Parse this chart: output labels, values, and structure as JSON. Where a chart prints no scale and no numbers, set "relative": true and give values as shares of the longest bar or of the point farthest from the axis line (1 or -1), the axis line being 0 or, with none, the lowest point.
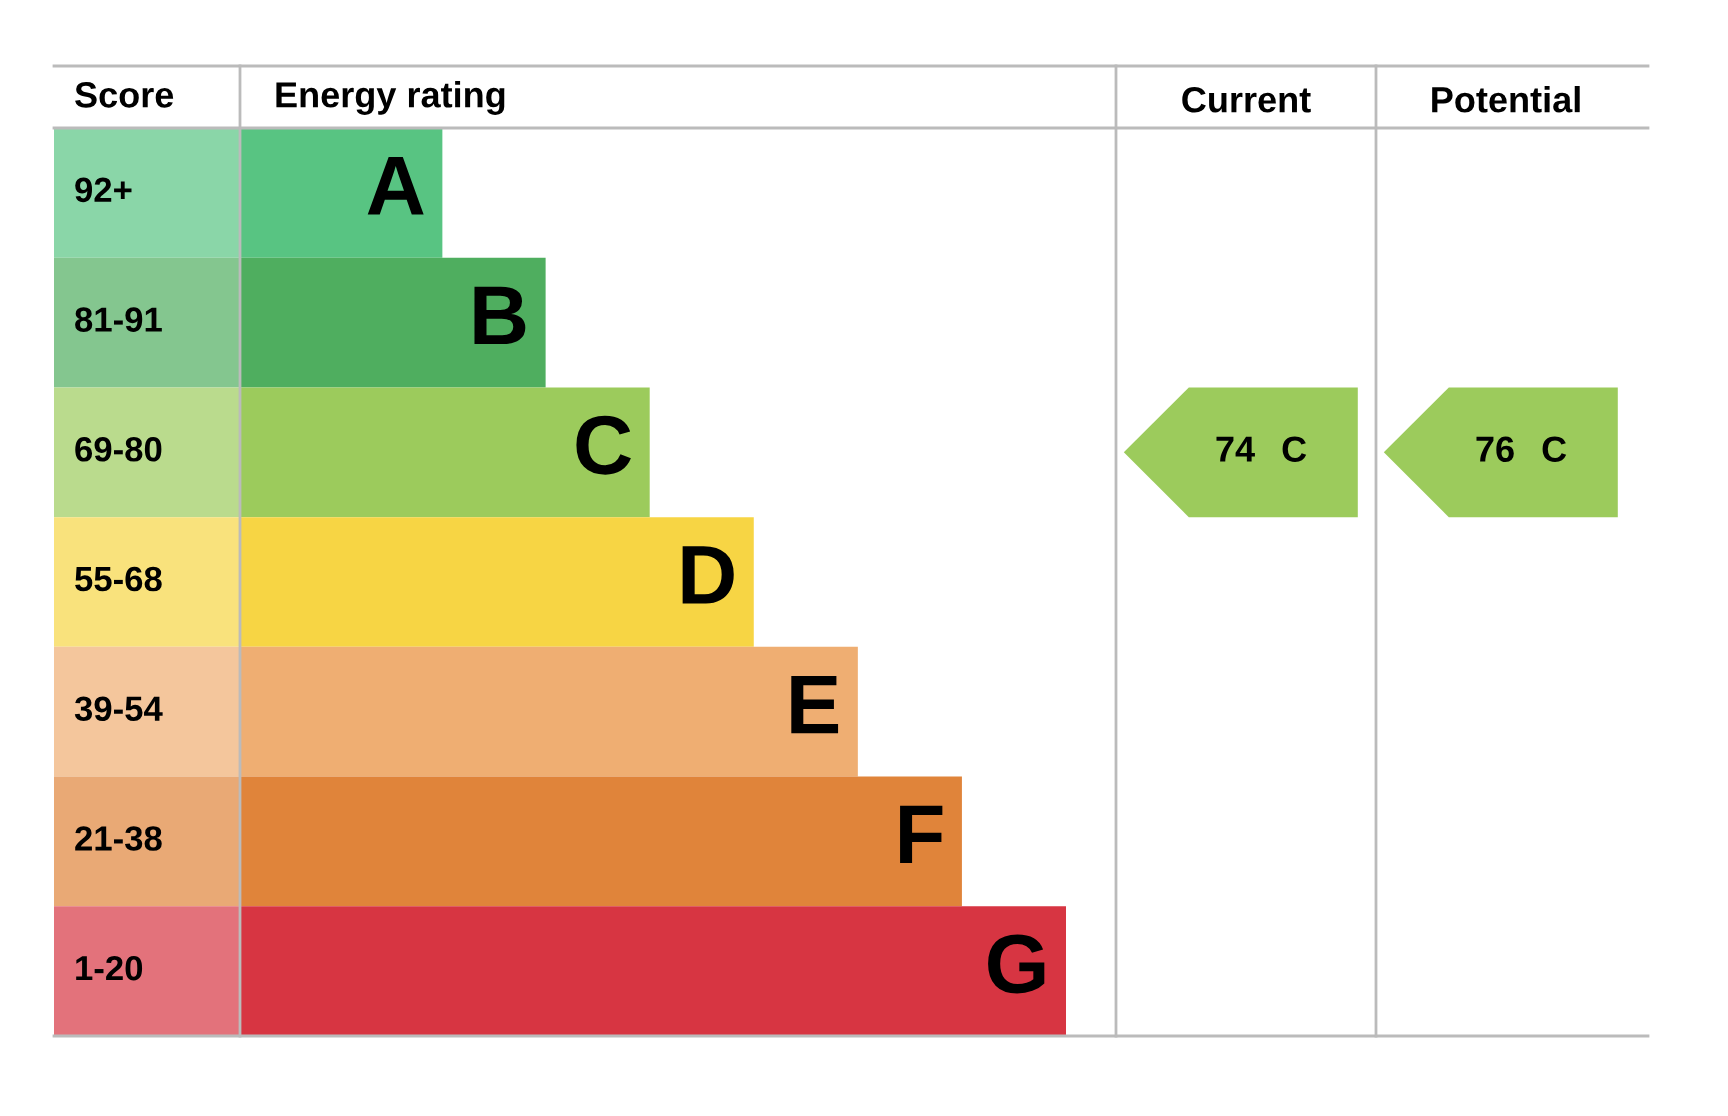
{
  "chart_data": [
    {
      "type": "bar",
      "orientation": "horizontal",
      "relative": true,
      "categories": [
        "A",
        "B",
        "C",
        "D",
        "E",
        "F",
        "G"
      ],
      "values": [
        0.245,
        0.37,
        0.496,
        0.622,
        0.748,
        0.874,
        1
      ],
      "colors": [
        "#58c482",
        "#4fae5f",
        "#9ccb5c",
        "#f7d544",
        "#efae72",
        "#e0843a",
        "#d73542"
      ],
      "annotations": [
        "Score",
        "Energy rating",
        "92+",
        "81-91",
        "69-80",
        "55-68",
        "39-54",
        "21-38",
        "1-20"
      ]
    },
    {
      "type": "heatmap",
      "categories": [
        "Current",
        "Potential"
      ],
      "y_categories": [
        "C"
      ],
      "cells": [
        [
          74,
          76
        ]
      ],
      "data_labels": true
    }
  ]
}
